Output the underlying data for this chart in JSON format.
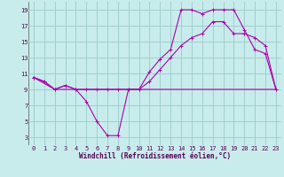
{
  "xlabel": "Windchill (Refroidissement éolien,°C)",
  "bg_color": "#c8ecec",
  "grid_color": "#a0cece",
  "line_color": "#aa00aa",
  "xlim": [
    -0.5,
    23.5
  ],
  "ylim": [
    2,
    20
  ],
  "xticks": [
    0,
    1,
    2,
    3,
    4,
    5,
    6,
    7,
    8,
    9,
    10,
    11,
    12,
    13,
    14,
    15,
    16,
    17,
    18,
    19,
    20,
    21,
    22,
    23
  ],
  "yticks": [
    3,
    5,
    7,
    9,
    11,
    13,
    15,
    17,
    19
  ],
  "line1_x": [
    0,
    1,
    2,
    3,
    4,
    5,
    6,
    7,
    8,
    9,
    10,
    11,
    12,
    13,
    14,
    15,
    16,
    17,
    18,
    19,
    20,
    21,
    22,
    23
  ],
  "line1_y": [
    10.5,
    10.0,
    9.0,
    9.5,
    9.0,
    7.5,
    5.0,
    3.2,
    3.2,
    9.0,
    9.0,
    11.2,
    12.8,
    14.0,
    19.0,
    19.0,
    18.5,
    19.0,
    19.0,
    19.0,
    16.5,
    14.0,
    13.5,
    9.0
  ],
  "line2_x": [
    0,
    2,
    23
  ],
  "line2_y": [
    10.5,
    9.0,
    9.0
  ],
  "line3_x": [
    0,
    1,
    2,
    3,
    4,
    5,
    6,
    7,
    8,
    9,
    10,
    11,
    12,
    13,
    14,
    15,
    16,
    17,
    18,
    19,
    20,
    21,
    22,
    23
  ],
  "line3_y": [
    10.5,
    10.0,
    9.0,
    9.5,
    9.0,
    9.0,
    9.0,
    9.0,
    9.0,
    9.0,
    9.0,
    10.0,
    11.5,
    13.0,
    14.5,
    15.5,
    16.0,
    17.5,
    17.5,
    16.0,
    16.0,
    15.5,
    14.5,
    9.0
  ],
  "tick_fontsize": 5.0,
  "xlabel_fontsize": 5.5
}
